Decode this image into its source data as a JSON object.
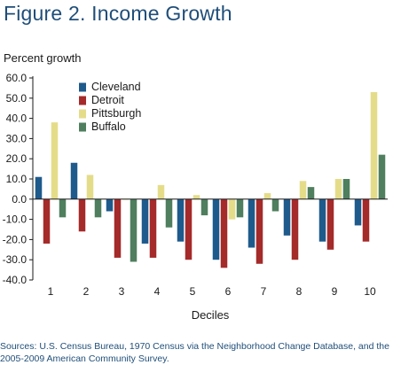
{
  "figure": {
    "title": "Figure 2. Income Growth",
    "source": "Sources: U.S. Census Bureau, 1970 Census via the Neighborhood Change Database, and the 2005-2009 American Community Survey."
  },
  "chart_data": {
    "type": "bar",
    "title": "",
    "ylabel": "Percent growth",
    "xlabel": "Deciles",
    "categories": [
      "1",
      "2",
      "3",
      "4",
      "5",
      "6",
      "7",
      "8",
      "9",
      "10"
    ],
    "ylim": [
      -40,
      60
    ],
    "yticks": [
      "60.0",
      "50.0",
      "40.0",
      "30.0",
      "20.0",
      "10.0",
      "0.0",
      "-10.0",
      "-20.0",
      "-30.0",
      "-40.0"
    ],
    "ytick_values": [
      60,
      50,
      40,
      30,
      20,
      10,
      0,
      -10,
      -20,
      -30,
      -40
    ],
    "grid": false,
    "legend_position": "top-left",
    "series": [
      {
        "name": "Cleveland",
        "color": "#1f5a8c",
        "values": [
          11,
          18,
          -6,
          -22,
          -21,
          -30,
          -24,
          -18,
          -21,
          -13
        ]
      },
      {
        "name": "Detroit",
        "color": "#a52a2a",
        "values": [
          -22,
          -16,
          -29,
          -29,
          -30,
          -34,
          -32,
          -30,
          -25,
          -21
        ]
      },
      {
        "name": "Pittsburgh",
        "color": "#e5dc8a",
        "values": [
          38,
          12,
          0,
          7,
          2,
          -10,
          3,
          9,
          10,
          53
        ]
      },
      {
        "name": "Buffalo",
        "color": "#4f7f5e",
        "values": [
          -9,
          -9,
          -31,
          -14,
          -8,
          -9,
          -6,
          6,
          10,
          22
        ]
      }
    ]
  }
}
